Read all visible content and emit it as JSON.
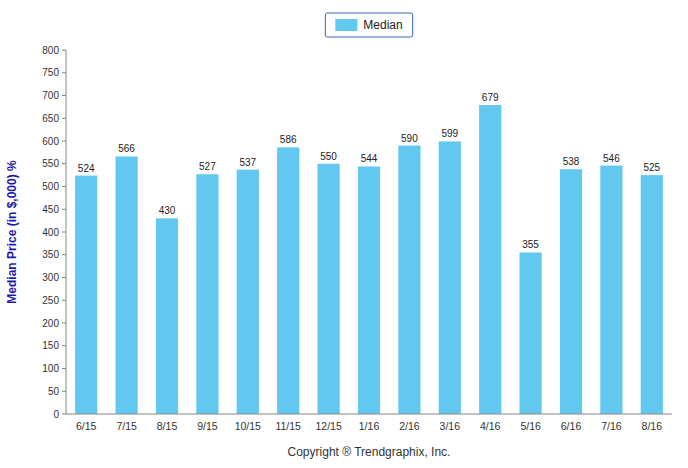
{
  "chart_data": {
    "type": "bar",
    "categories": [
      "6/15",
      "7/15",
      "8/15",
      "9/15",
      "10/15",
      "11/15",
      "12/15",
      "1/16",
      "2/16",
      "3/16",
      "4/16",
      "5/16",
      "6/16",
      "7/16",
      "8/16"
    ],
    "series": [
      {
        "name": "Median",
        "color": "#63C8F0",
        "values": [
          524,
          566,
          430,
          527,
          537,
          586,
          550,
          544,
          590,
          599,
          679,
          355,
          538,
          546,
          525
        ]
      }
    ],
    "xlabel": "Copyright ® Trendgraphix, Inc.",
    "ylabel": "Median Price (in $,000) %",
    "ylim": [
      0,
      800
    ],
    "yticks": [
      0,
      50,
      100,
      150,
      200,
      250,
      300,
      350,
      400,
      450,
      500,
      550,
      600,
      650,
      700,
      750,
      800
    ],
    "grid": false,
    "legend": "top",
    "data_labels": true
  }
}
